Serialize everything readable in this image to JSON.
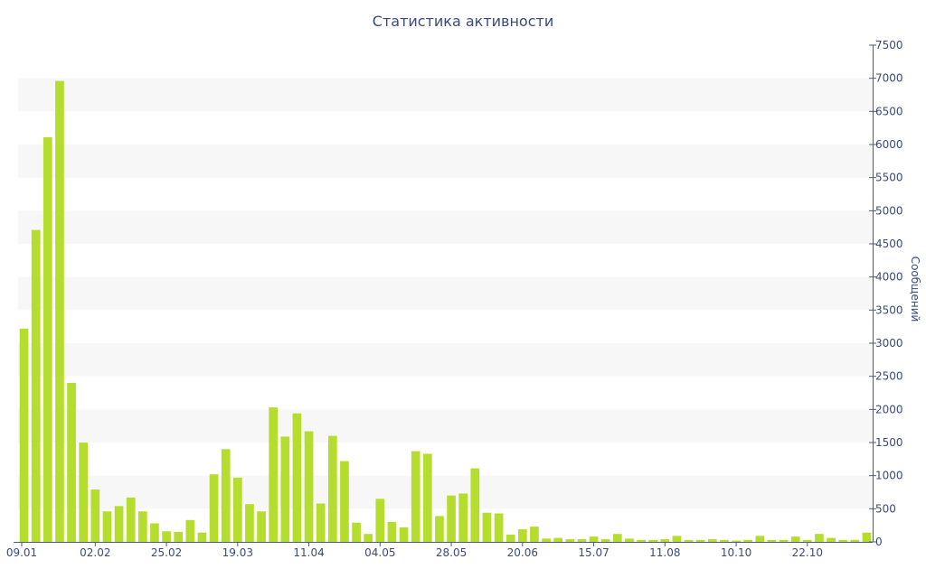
{
  "chart_data": {
    "type": "bar",
    "title": "Статистика активности",
    "ylabel": "Сообщений",
    "xlabel": "",
    "ylim": [
      0,
      7500
    ],
    "y_axis_side": "right",
    "y_ticks": [
      0,
      500,
      1000,
      1500,
      2000,
      2500,
      3000,
      3500,
      4000,
      4500,
      5000,
      5500,
      6000,
      6500,
      7000,
      7500
    ],
    "x_tick_labels": [
      {
        "label": "09.01",
        "index": 0
      },
      {
        "label": "02.02",
        "index": 6
      },
      {
        "label": "25.02",
        "index": 12
      },
      {
        "label": "19.03",
        "index": 18
      },
      {
        "label": "11.04",
        "index": 24
      },
      {
        "label": "04.05",
        "index": 30
      },
      {
        "label": "28.05",
        "index": 36
      },
      {
        "label": "20.06",
        "index": 42
      },
      {
        "label": "15.07",
        "index": 48
      },
      {
        "label": "11.08",
        "index": 54
      },
      {
        "label": "10.10",
        "index": 60
      },
      {
        "label": "22.10",
        "index": 66
      }
    ],
    "values": [
      3220,
      4710,
      6110,
      6960,
      2400,
      1500,
      790,
      460,
      540,
      670,
      460,
      280,
      160,
      150,
      330,
      140,
      1020,
      1400,
      970,
      570,
      460,
      2030,
      1590,
      1940,
      1670,
      580,
      1600,
      1220,
      290,
      120,
      650,
      300,
      220,
      1370,
      1330,
      390,
      700,
      730,
      1110,
      440,
      430,
      110,
      190,
      230,
      50,
      60,
      40,
      40,
      80,
      40,
      120,
      50,
      30,
      30,
      40,
      90,
      30,
      30,
      40,
      30,
      20,
      30,
      90,
      30,
      30,
      80,
      30,
      120,
      60,
      30,
      30,
      140
    ],
    "bar_color": "#b5dd2e",
    "grid": "alternating-bands",
    "band_color": "#f7f7f7",
    "axis_color": "#4a5a8a",
    "text_color": "#3b4a7a"
  }
}
